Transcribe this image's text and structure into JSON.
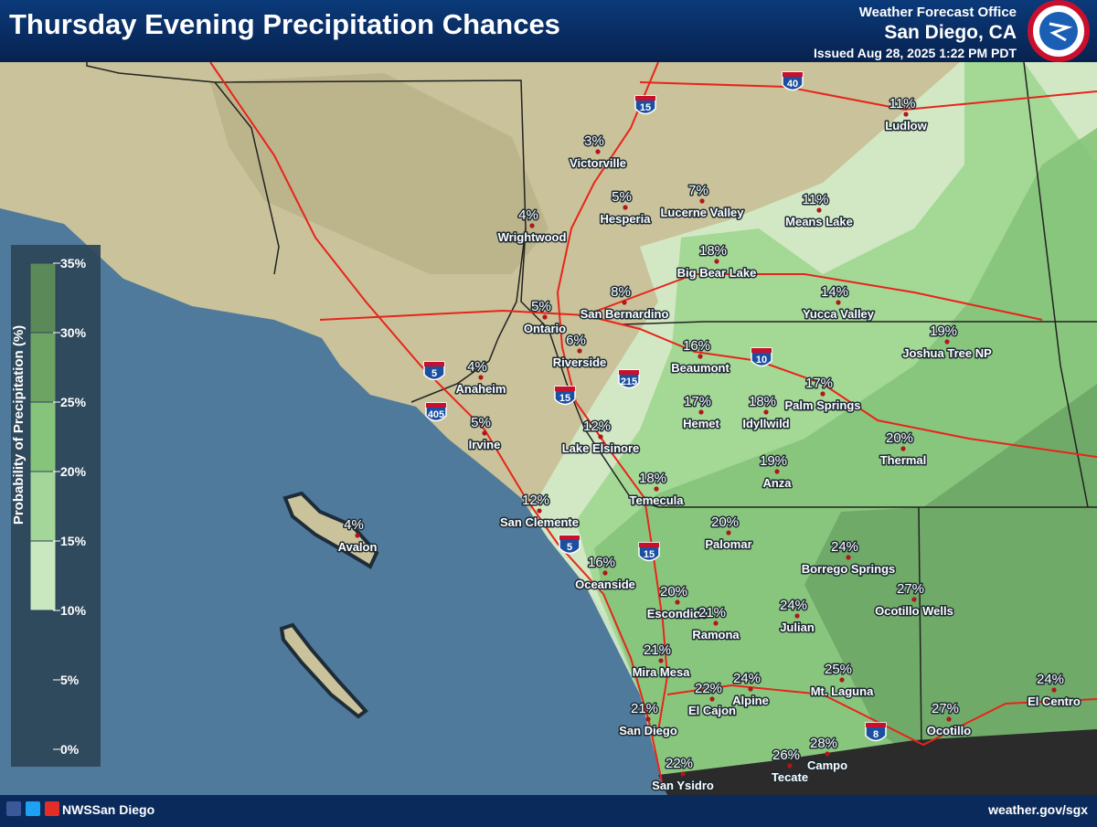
{
  "header": {
    "title": "Thursday Evening Precipitation Chances",
    "office": "Weather Forecast Office",
    "location": "San Diego, CA",
    "issued": "Issued Aug 28, 2025 1:22 PM PDT"
  },
  "legend": {
    "title": "Probability of Precipitation (%)",
    "ticks": [
      {
        "value": 35,
        "label": "35%"
      },
      {
        "value": 30,
        "label": "30%"
      },
      {
        "value": 25,
        "label": "25%"
      },
      {
        "value": 20,
        "label": "20%"
      },
      {
        "value": 15,
        "label": "15%"
      },
      {
        "value": 10,
        "label": "10%"
      },
      {
        "value": 5,
        "label": "5%"
      },
      {
        "value": 0,
        "label": "0%"
      }
    ],
    "bins": [
      10,
      15,
      20,
      25,
      30,
      35
    ],
    "colors": [
      "#c9e8c0",
      "#a4d69a",
      "#86c47c",
      "#6da464",
      "#5b8a58"
    ]
  },
  "places": [
    {
      "name": "Ludlow",
      "chance": "11%"
    },
    {
      "name": "Victorville",
      "chance": "3%"
    },
    {
      "name": "Hesperia",
      "chance": "5%"
    },
    {
      "name": "Lucerne Valley",
      "chance": "7%"
    },
    {
      "name": "Means Lake",
      "chance": "11%"
    },
    {
      "name": "Wrightwood",
      "chance": "4%"
    },
    {
      "name": "Big Bear Lake",
      "chance": "18%"
    },
    {
      "name": "Yucca Valley",
      "chance": "14%"
    },
    {
      "name": "Ontario",
      "chance": "5%"
    },
    {
      "name": "San Bernardino",
      "chance": "8%"
    },
    {
      "name": "Joshua Tree NP",
      "chance": "19%"
    },
    {
      "name": "Riverside",
      "chance": "6%"
    },
    {
      "name": "Beaumont",
      "chance": "16%"
    },
    {
      "name": "Anaheim",
      "chance": "4%"
    },
    {
      "name": "Palm Springs",
      "chance": "17%"
    },
    {
      "name": "Hemet",
      "chance": "17%"
    },
    {
      "name": "Idyllwild",
      "chance": "18%"
    },
    {
      "name": "Irvine",
      "chance": "5%"
    },
    {
      "name": "Lake Elsinore",
      "chance": "12%"
    },
    {
      "name": "Thermal",
      "chance": "20%"
    },
    {
      "name": "Anza",
      "chance": "19%"
    },
    {
      "name": "Temecula",
      "chance": "18%"
    },
    {
      "name": "San Clemente",
      "chance": "12%"
    },
    {
      "name": "Palomar",
      "chance": "20%"
    },
    {
      "name": "Avalon",
      "chance": "4%"
    },
    {
      "name": "Borrego Springs",
      "chance": "24%"
    },
    {
      "name": "Oceanside",
      "chance": "16%"
    },
    {
      "name": "Ocotillo Wells",
      "chance": "27%"
    },
    {
      "name": "Escondido",
      "chance": "20%"
    },
    {
      "name": "Ramona",
      "chance": "21%"
    },
    {
      "name": "Julian",
      "chance": "24%"
    },
    {
      "name": "Mira Mesa",
      "chance": "21%"
    },
    {
      "name": "Mt. Laguna",
      "chance": "25%"
    },
    {
      "name": "Alpine",
      "chance": "24%"
    },
    {
      "name": "El Cajon",
      "chance": "22%"
    },
    {
      "name": "El Centro",
      "chance": "24%"
    },
    {
      "name": "San Diego",
      "chance": "21%"
    },
    {
      "name": "Ocotillo",
      "chance": "27%"
    },
    {
      "name": "Tecate",
      "chance": "26%"
    },
    {
      "name": "Campo",
      "chance": "28%"
    },
    {
      "name": "San Ysidro",
      "chance": "22%"
    }
  ],
  "highways": [
    "40",
    "15",
    "5",
    "405",
    "15",
    "215",
    "10",
    "5",
    "15",
    "8"
  ],
  "footer": {
    "social": "NWSSan Diego",
    "website": "weather.gov/sgx"
  }
}
